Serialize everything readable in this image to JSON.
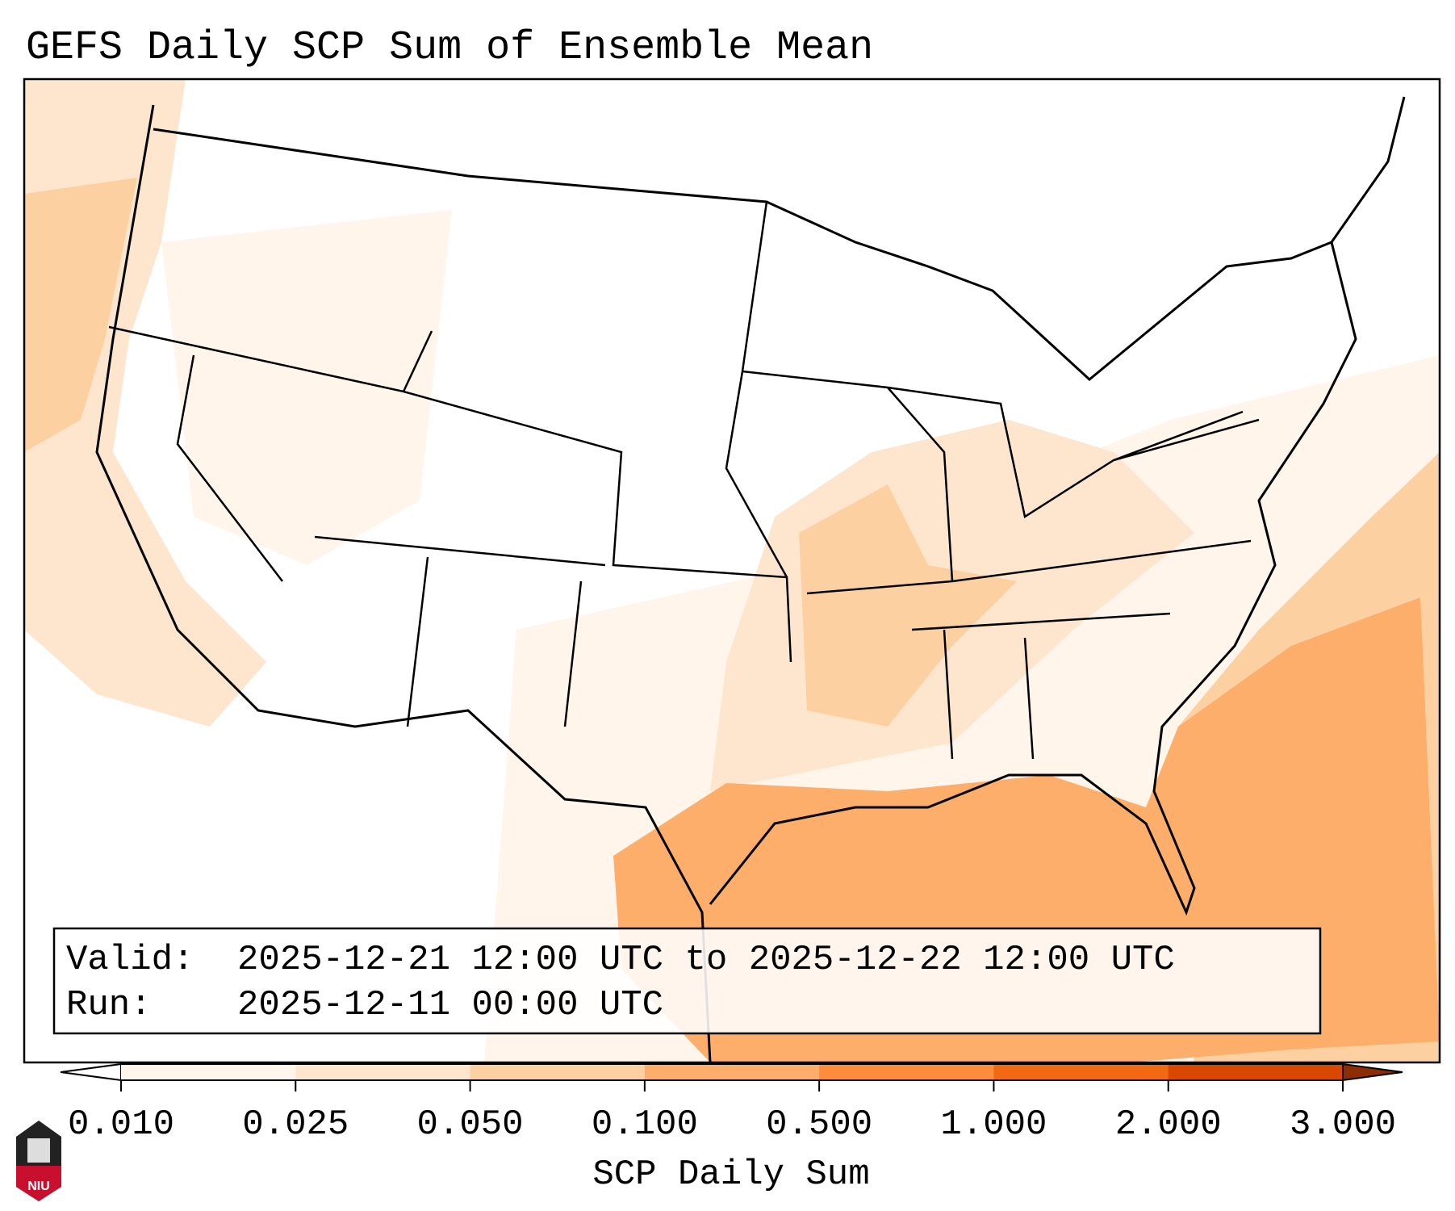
{
  "title": "GEFS Daily SCP Sum of Ensemble Mean",
  "info_box": {
    "valid_label": "Valid:",
    "valid_value": "2025-12-21 12:00 UTC to 2025-12-22 12:00 UTC",
    "run_label": "Run:",
    "run_value": "2025-12-11 00:00 UTC"
  },
  "colorbar": {
    "label": "SCP Daily Sum",
    "ticks": [
      "0.010",
      "0.025",
      "0.050",
      "0.100",
      "0.500",
      "1.000",
      "2.000",
      "3.000"
    ],
    "under_color": "#ffffff",
    "over_color": "#8c2d04",
    "colors": [
      "#fff5eb",
      "#fee6ce",
      "#fdd0a2",
      "#fdae6b",
      "#fd8d3c",
      "#f16913",
      "#d94801"
    ]
  },
  "logo": {
    "text": "NIU",
    "color": "#c8102e"
  }
}
